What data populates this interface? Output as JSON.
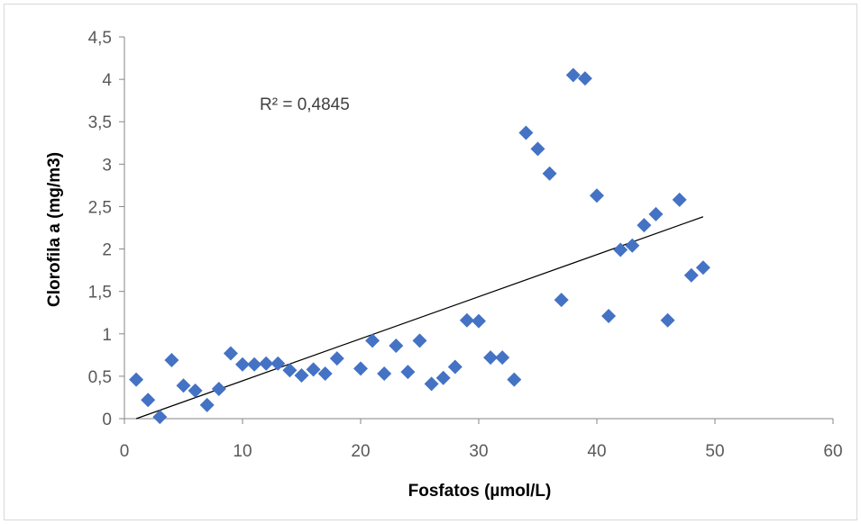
{
  "chart_data": {
    "type": "scatter",
    "title": "",
    "xlabel": "Fosfatos (µmol/L)",
    "ylabel": "Clorofila a (mg/m3)",
    "xlim": [
      0,
      60
    ],
    "ylim": [
      0,
      4.5
    ],
    "x_ticks": [
      0,
      10,
      20,
      30,
      40,
      50,
      60
    ],
    "y_ticks": [
      0,
      0.5,
      1,
      1.5,
      2,
      2.5,
      3,
      3.5,
      4,
      4.5
    ],
    "x_tick_labels": [
      "0",
      "10",
      "20",
      "30",
      "40",
      "50",
      "60"
    ],
    "y_tick_labels": [
      "0",
      "0,5",
      "1",
      "1,5",
      "2",
      "2,5",
      "3",
      "3,5",
      "4",
      "4,5"
    ],
    "grid": false,
    "legend": "none",
    "marker": "diamond",
    "marker_color": "#4472c4",
    "trendline_color": "#000000",
    "annotation": "R² = 0,4845",
    "trendline": {
      "type": "linear",
      "x": [
        1,
        49
      ],
      "y": [
        0.0,
        2.38
      ]
    },
    "series": [
      {
        "x": [
          1,
          2,
          3,
          4,
          5,
          6,
          7,
          8,
          9,
          10,
          11,
          12,
          13,
          14,
          15,
          16,
          17,
          18,
          20,
          21,
          22,
          23,
          24,
          25,
          26,
          27,
          28,
          29,
          30,
          31,
          32,
          33,
          34,
          35,
          36,
          37,
          38,
          39,
          40,
          41,
          42,
          43,
          44,
          45,
          46,
          47,
          48,
          49
        ],
        "y": [
          0.46,
          0.22,
          0.02,
          0.69,
          0.39,
          0.33,
          0.16,
          0.35,
          0.77,
          0.64,
          0.64,
          0.65,
          0.65,
          0.57,
          0.51,
          0.58,
          0.53,
          0.71,
          0.59,
          0.92,
          0.53,
          0.86,
          0.55,
          0.92,
          0.41,
          0.48,
          0.61,
          1.16,
          1.15,
          0.72,
          0.72,
          0.46,
          3.37,
          3.18,
          2.89,
          1.4,
          4.05,
          4.01,
          2.63,
          1.21,
          1.99,
          2.04,
          2.28,
          2.41,
          1.16,
          2.58,
          1.69,
          1.78
        ]
      }
    ]
  }
}
